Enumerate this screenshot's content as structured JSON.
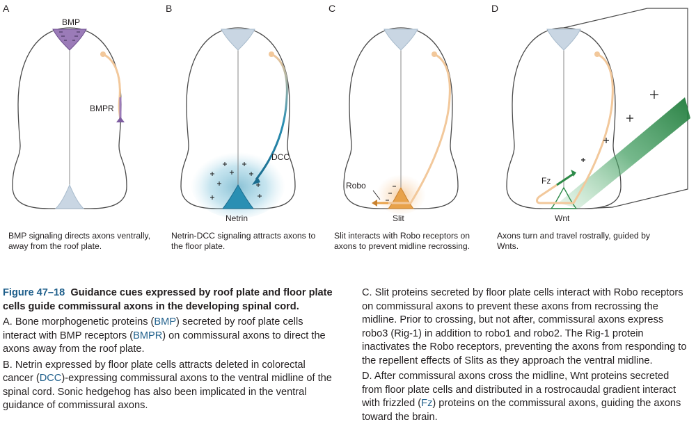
{
  "panels": [
    {
      "letter": "A",
      "caption": "BMP signaling directs axons ventrally, away from the roof plate.",
      "labels": {
        "roof": "BMP",
        "receptor": "BMPR"
      }
    },
    {
      "letter": "B",
      "caption": "Netrin-DCC signaling attracts axons to the floor plate.",
      "labels": {
        "floor": "Netrin",
        "receptor": "DCC"
      }
    },
    {
      "letter": "C",
      "caption": "Slit interacts with Robo receptors on axons to prevent midline recrossing.",
      "labels": {
        "floor": "Slit",
        "receptor": "Robo"
      }
    },
    {
      "letter": "D",
      "caption": "Axons turn and travel rostrally, guided by Wnts.",
      "labels": {
        "floor": "Wnt",
        "receptor": "Fz"
      }
    }
  ],
  "figure": {
    "number": "Figure 47–18",
    "title": "Guidance cues expressed by roof plate and floor plate cells guide commissural axons in the developing spinal cord.",
    "paragraph_a": {
      "pre": "A. Bone morphogenetic proteins (",
      "bmp": "BMP",
      "mid": ") secreted by roof plate cells interact with BMP receptors (",
      "bmpr": "BMPR",
      "post": ") on commissural axons to direct the axons away from the roof plate."
    },
    "paragraph_b": {
      "pre": "B. Netrin expressed by floor plate cells attracts deleted in colorectal cancer (",
      "dcc": "DCC",
      "post": ")-expressing commissural axons to the ventral midline of the spinal cord. Sonic hedgehog has also been implicated in the ventral guidance of commissural axons."
    },
    "paragraph_c": "C. Slit proteins secreted by floor plate cells interact with Robo receptors on commissural axons to prevent these axons from recrossing the midline. Prior to crossing, but not after, commissural axons express robo3 (Rig-1) in addition to robo1 and robo2. The Rig-1 protein inactivates the Robo receptors, preventing the axons from responding to the repellent effects of Slits as they approach the ventral midline.",
    "paragraph_d": {
      "pre": "D. After commissural axons cross the midline, Wnt proteins secreted from floor plate cells and distributed in a rostrocaudal gradient interact with frizzled (",
      "fz": "Fz",
      "post": ") proteins on the commissural axons, guiding the axons toward the brain."
    }
  },
  "colors": {
    "bmp": "#9b7bb8",
    "netrin": "#2a8fb3",
    "slit": "#e8a24a",
    "wnt": "#2e8b4a",
    "axon": "#f2c89b",
    "plate": "#c9d6e3",
    "outline": "#4a4a4a"
  }
}
